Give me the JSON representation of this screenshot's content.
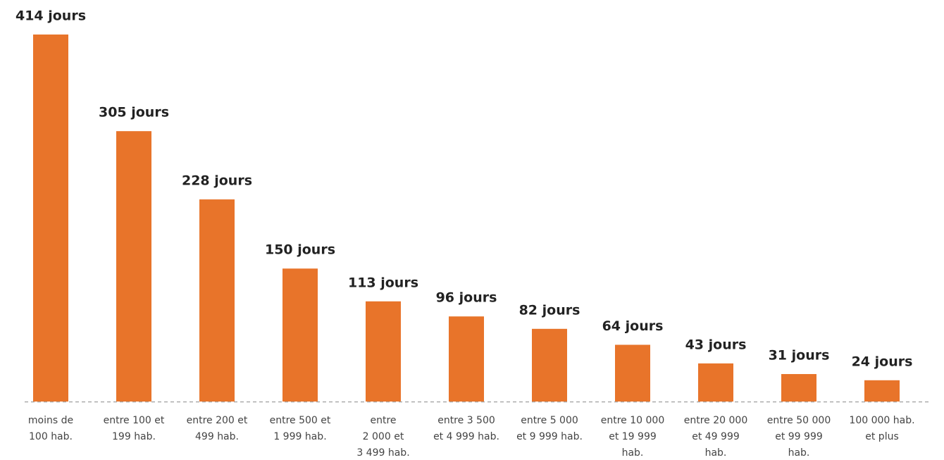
{
  "chart_data": {
    "type": "bar",
    "categories": [
      [
        "moins de",
        "100 hab."
      ],
      [
        "entre 100 et",
        "199 hab."
      ],
      [
        "entre 200 et",
        "499 hab."
      ],
      [
        "entre 500 et",
        "1 999 hab."
      ],
      [
        "entre",
        "2 000 et",
        "3 499 hab."
      ],
      [
        "entre 3 500",
        "et 4 999 hab."
      ],
      [
        "entre 5 000",
        "et 9 999 hab."
      ],
      [
        "entre 10 000",
        "et 19 999",
        "hab."
      ],
      [
        "entre 20 000",
        "et 49 999",
        "hab."
      ],
      [
        "entre 50 000",
        "et 99 999",
        "hab."
      ],
      [
        "100 000 hab.",
        "et plus"
      ]
    ],
    "values": [
      414,
      305,
      228,
      150,
      113,
      96,
      82,
      64,
      43,
      31,
      24
    ],
    "value_labels": [
      "414 jours",
      "305 jours",
      "228 jours",
      "150 jours",
      "113 jours",
      "96 jours",
      "82 jours",
      "64 jours",
      "43 jours",
      "31 jours",
      "24 jours"
    ],
    "color": "#e8742a"
  }
}
